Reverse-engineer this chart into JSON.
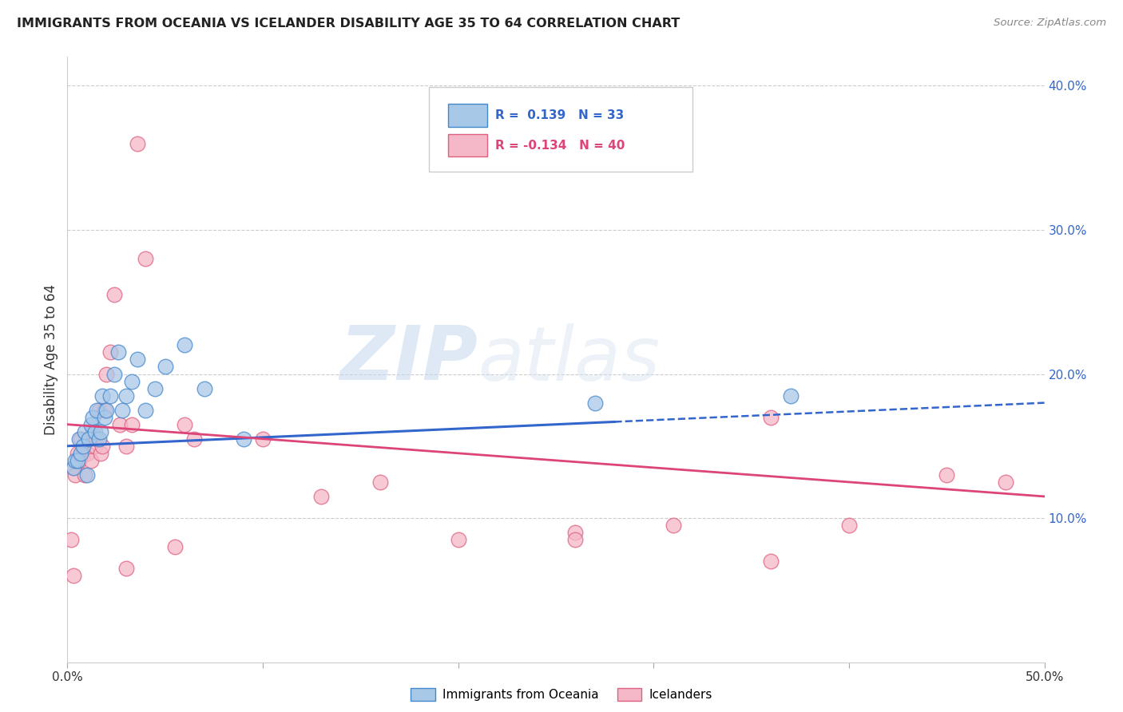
{
  "title": "IMMIGRANTS FROM OCEANIA VS ICELANDER DISABILITY AGE 35 TO 64 CORRELATION CHART",
  "source": "Source: ZipAtlas.com",
  "ylabel": "Disability Age 35 to 64",
  "xlim": [
    0.0,
    0.5
  ],
  "ylim": [
    0.0,
    0.42
  ],
  "yticks_right": [
    0.1,
    0.2,
    0.3,
    0.4
  ],
  "ytick_right_labels": [
    "10.0%",
    "20.0%",
    "30.0%",
    "40.0%"
  ],
  "legend1_r": "0.139",
  "legend1_n": "33",
  "legend2_r": "-0.134",
  "legend2_n": "40",
  "blue_fill": "#a8c8e8",
  "pink_fill": "#f5b8c8",
  "blue_edge": "#4488cc",
  "pink_edge": "#e06080",
  "blue_line": "#3366cc",
  "pink_line": "#dd4477",
  "watermark_zip": "ZIP",
  "watermark_atlas": "atlas",
  "blue_scatter_x": [
    0.003,
    0.004,
    0.005,
    0.006,
    0.007,
    0.008,
    0.009,
    0.01,
    0.011,
    0.012,
    0.013,
    0.014,
    0.015,
    0.016,
    0.017,
    0.018,
    0.019,
    0.02,
    0.022,
    0.024,
    0.026,
    0.028,
    0.03,
    0.033,
    0.036,
    0.04,
    0.045,
    0.05,
    0.06,
    0.07,
    0.09,
    0.27,
    0.37
  ],
  "blue_scatter_y": [
    0.135,
    0.14,
    0.14,
    0.155,
    0.145,
    0.15,
    0.16,
    0.13,
    0.155,
    0.165,
    0.17,
    0.16,
    0.175,
    0.155,
    0.16,
    0.185,
    0.17,
    0.175,
    0.185,
    0.2,
    0.215,
    0.175,
    0.185,
    0.195,
    0.21,
    0.175,
    0.19,
    0.205,
    0.22,
    0.19,
    0.155,
    0.18,
    0.185
  ],
  "pink_scatter_x": [
    0.002,
    0.003,
    0.004,
    0.005,
    0.006,
    0.007,
    0.008,
    0.009,
    0.01,
    0.011,
    0.012,
    0.013,
    0.014,
    0.015,
    0.016,
    0.017,
    0.018,
    0.019,
    0.02,
    0.022,
    0.024,
    0.027,
    0.03,
    0.033,
    0.036,
    0.04,
    0.06,
    0.065,
    0.1,
    0.13,
    0.16,
    0.2,
    0.26,
    0.31,
    0.36,
    0.4,
    0.45
  ],
  "pink_scatter_y": [
    0.085,
    0.135,
    0.13,
    0.145,
    0.14,
    0.155,
    0.145,
    0.13,
    0.145,
    0.155,
    0.14,
    0.16,
    0.15,
    0.155,
    0.175,
    0.145,
    0.15,
    0.175,
    0.2,
    0.215,
    0.255,
    0.165,
    0.15,
    0.165,
    0.36,
    0.28,
    0.165,
    0.155,
    0.155,
    0.115,
    0.125,
    0.085,
    0.09,
    0.095,
    0.17,
    0.095,
    0.13
  ],
  "extra_pink_x": [
    0.003,
    0.03,
    0.055,
    0.26,
    0.36,
    0.48
  ],
  "extra_pink_y": [
    0.06,
    0.065,
    0.08,
    0.085,
    0.07,
    0.125
  ]
}
